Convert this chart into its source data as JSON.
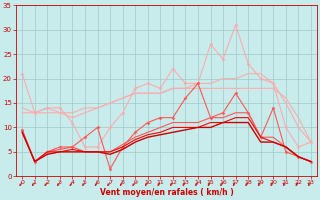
{
  "xlabel": "Vent moyen/en rafales ( km/h )",
  "background_color": "#c8ecec",
  "grid_color": "#a0c8c8",
  "xlim": [
    -0.5,
    23.5
  ],
  "ylim": [
    0,
    35
  ],
  "yticks": [
    0,
    5,
    10,
    15,
    20,
    25,
    30,
    35
  ],
  "xticks": [
    0,
    1,
    2,
    3,
    4,
    5,
    6,
    7,
    8,
    9,
    10,
    11,
    12,
    13,
    14,
    15,
    16,
    17,
    18,
    19,
    20,
    21,
    22,
    23
  ],
  "series": [
    {
      "x": [
        0,
        1,
        2,
        3,
        4,
        5,
        6,
        7,
        8,
        9,
        10,
        11,
        12,
        13,
        14,
        15,
        16,
        17,
        18,
        19,
        20,
        21,
        22,
        23
      ],
      "y": [
        21,
        13,
        14,
        14,
        11,
        6,
        6,
        10,
        13,
        18,
        19,
        18,
        22,
        19,
        19,
        27,
        24,
        31,
        23,
        20,
        19,
        10,
        6,
        7
      ],
      "color": "#ffaaaa",
      "lw": 0.8,
      "marker": "D",
      "ms": 1.5
    },
    {
      "x": [
        0,
        1,
        2,
        3,
        4,
        5,
        6,
        7,
        8,
        9,
        10,
        11,
        12,
        13,
        14,
        15,
        16,
        17,
        18,
        19,
        20,
        21,
        22,
        23
      ],
      "y": [
        14,
        13,
        14,
        13,
        12,
        13,
        14,
        15,
        16,
        17,
        17,
        17,
        18,
        18,
        19,
        19,
        20,
        20,
        21,
        21,
        19,
        15,
        10,
        7
      ],
      "color": "#ffaaaa",
      "lw": 0.8,
      "marker": null,
      "ms": 0
    },
    {
      "x": [
        0,
        1,
        2,
        3,
        4,
        5,
        6,
        7,
        8,
        9,
        10,
        11,
        12,
        13,
        14,
        15,
        16,
        17,
        18,
        19,
        20,
        21,
        22,
        23
      ],
      "y": [
        13,
        13,
        13,
        13,
        13,
        14,
        14,
        15,
        16,
        17,
        17,
        17,
        18,
        18,
        18,
        18,
        18,
        18,
        18,
        18,
        18,
        16,
        12,
        7
      ],
      "color": "#ffaaaa",
      "lw": 0.8,
      "marker": null,
      "ms": 0
    },
    {
      "x": [
        0,
        1,
        2,
        3,
        4,
        5,
        6,
        7,
        8,
        9,
        10,
        11,
        12,
        13,
        14,
        15,
        16,
        17,
        18,
        19,
        20,
        21,
        22,
        23
      ],
      "y": [
        9.5,
        3,
        5,
        6,
        6,
        8,
        10,
        1.5,
        6,
        9,
        11,
        12,
        12,
        16,
        19,
        12,
        13,
        17,
        13,
        8,
        14,
        5,
        4,
        3
      ],
      "color": "#ff5555",
      "lw": 0.8,
      "marker": "D",
      "ms": 1.5
    },
    {
      "x": [
        0,
        1,
        2,
        3,
        4,
        5,
        6,
        7,
        8,
        9,
        10,
        11,
        12,
        13,
        14,
        15,
        16,
        17,
        18,
        19,
        20,
        21,
        22,
        23
      ],
      "y": [
        9.5,
        3,
        5,
        5.5,
        6,
        5,
        5,
        5,
        6.5,
        8,
        9,
        10,
        11,
        11,
        11,
        12,
        12,
        13,
        13,
        8,
        8,
        6,
        4,
        3
      ],
      "color": "#ff5555",
      "lw": 0.8,
      "marker": null,
      "ms": 0
    },
    {
      "x": [
        0,
        1,
        2,
        3,
        4,
        5,
        6,
        7,
        8,
        9,
        10,
        11,
        12,
        13,
        14,
        15,
        16,
        17,
        18,
        19,
        20,
        21,
        22,
        23
      ],
      "y": [
        9,
        3,
        5,
        5,
        5.5,
        5,
        5,
        5,
        6,
        7.5,
        8.5,
        9,
        10,
        10,
        10,
        11,
        11,
        12,
        12,
        8,
        7,
        6,
        4,
        3
      ],
      "color": "#ff0000",
      "lw": 0.8,
      "marker": null,
      "ms": 0
    },
    {
      "x": [
        0,
        1,
        2,
        3,
        4,
        5,
        6,
        7,
        8,
        9,
        10,
        11,
        12,
        13,
        14,
        15,
        16,
        17,
        18,
        19,
        20,
        21,
        22,
        23
      ],
      "y": [
        9,
        3,
        4.5,
        5,
        5,
        5,
        5,
        4.5,
        5.5,
        7,
        8,
        8.5,
        9,
        9.5,
        10,
        10,
        11,
        11,
        11,
        7,
        7,
        6,
        4,
        3
      ],
      "color": "#cc0000",
      "lw": 1.0,
      "marker": null,
      "ms": 0
    }
  ],
  "arrow_color": "#cc0000",
  "tick_color": "#cc0000",
  "label_color": "#cc0000"
}
